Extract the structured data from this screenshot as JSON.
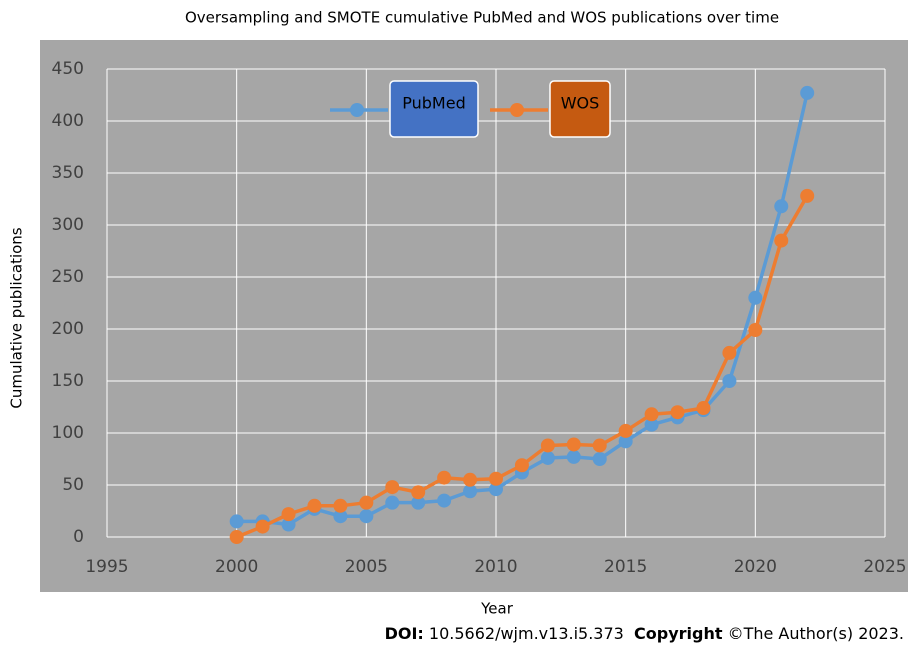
{
  "chart_data": {
    "type": "line",
    "title": "Oversampling and SMOTE cumulative PubMed and WOS publications over time",
    "x_label": "Year",
    "y_label": "Cumulative publications",
    "x": [
      2000,
      2001,
      2002,
      2003,
      2004,
      2005,
      2006,
      2007,
      2008,
      2009,
      2010,
      2011,
      2012,
      2013,
      2014,
      2015,
      2016,
      2017,
      2018,
      2019,
      2020,
      2021,
      2022
    ],
    "series": [
      {
        "name": "PubMed",
        "color": "#5b9bd5",
        "legend_color": "#4472c4",
        "values": [
          15,
          15,
          12,
          27,
          20,
          20,
          33,
          33,
          35,
          44,
          46,
          62,
          76,
          77,
          75,
          92,
          108,
          115,
          122,
          150,
          230,
          318,
          427
        ]
      },
      {
        "name": "WOS",
        "color": "#ed7d31",
        "legend_color": "#c55a11",
        "values": [
          0,
          10,
          22,
          30,
          30,
          33,
          48,
          43,
          57,
          55,
          56,
          69,
          88,
          89,
          88,
          102,
          118,
          120,
          124,
          177,
          199,
          285,
          328
        ]
      }
    ],
    "xlim": [
      1995,
      2025
    ],
    "xticks": [
      1995,
      2000,
      2005,
      2010,
      2015,
      2020,
      2025
    ],
    "ylim": [
      0,
      450
    ],
    "yticks": [
      0,
      50,
      100,
      150,
      200,
      250,
      300,
      350,
      400,
      450
    ],
    "grid": true
  },
  "footer": {
    "doi_label": "DOI:",
    "doi": "10.5662/wjm.v13.i5.373",
    "copyright_label": "Copyright",
    "copyright": "©The Author(s) 2023."
  }
}
